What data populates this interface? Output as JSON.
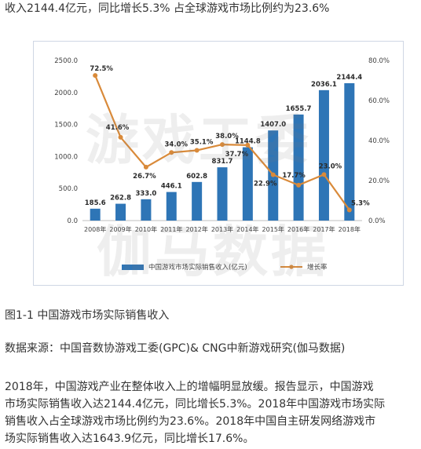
{
  "article": {
    "top_line": "收入2144.4亿元，同比增长5.3% 占全球游戏市场比例约为23.6%",
    "caption": "图1-1 中国游戏市场实际销售收入",
    "source": "数据来源：中国音数协游戏工委(GPC)& CNG中新游戏研究(伽马数据)",
    "paragraph_lines": [
      "2018年，中国游戏产业在整体收入上的增幅明显放缓。报告显示，中国游戏",
      "市场实际销售收入达2144.4亿元，同比增长5.3%。2018年中国游戏市场实际",
      "销售收入占全球游戏市场比例约为23.6%。2018年中国自主研发网络游戏市",
      "场实际销售收入达1643.9亿元，同比增长17.6%。"
    ]
  },
  "watermark": {
    "line1": "游戏工委",
    "line2": "伽马数据"
  },
  "chart_data": {
    "type": "bar",
    "categories": [
      "2008年",
      "2009年",
      "2010年",
      "2011年",
      "2012年",
      "2013年",
      "2014年",
      "2015年",
      "2016年",
      "2017年",
      "2018年"
    ],
    "series": [
      {
        "name": "中国游戏市场实际销售收入(亿元)",
        "type": "bar",
        "axis": "left",
        "values": [
          185.6,
          262.8,
          333.0,
          446.1,
          602.8,
          831.7,
          1144.8,
          1407.0,
          1655.7,
          2036.1,
          2144.4
        ],
        "labels": [
          "185.6",
          "262.8",
          "333.0",
          "446.1",
          "602.8",
          "831.7",
          "1144.8",
          "1407.0",
          "1655.7",
          "2036.1",
          "2144.4"
        ],
        "color": "#2e75b6"
      },
      {
        "name": "增长率",
        "type": "line",
        "axis": "right",
        "values": [
          72.5,
          41.6,
          26.7,
          34.0,
          35.1,
          38.0,
          37.7,
          22.9,
          17.7,
          23.0,
          5.3
        ],
        "labels": [
          "72.5%",
          "41.6%",
          "26.7%",
          "34.0%",
          "35.1%",
          "38.0%",
          "37.7%",
          "22.9%",
          "17.7%",
          "23.0%",
          "5.3%"
        ],
        "color": "#d98a3a"
      }
    ],
    "y_left": {
      "ylim": [
        0,
        2500
      ],
      "ticks": [
        "0.0",
        "500.0",
        "1000.0",
        "1500.0",
        "2000.0",
        "2500.0"
      ]
    },
    "y_right": {
      "ylim": [
        0,
        80
      ],
      "ticks": [
        "0.0%",
        "20.0%",
        "40.0%",
        "60.0%",
        "80.0%"
      ]
    },
    "grid": false,
    "legend_position": "bottom"
  }
}
